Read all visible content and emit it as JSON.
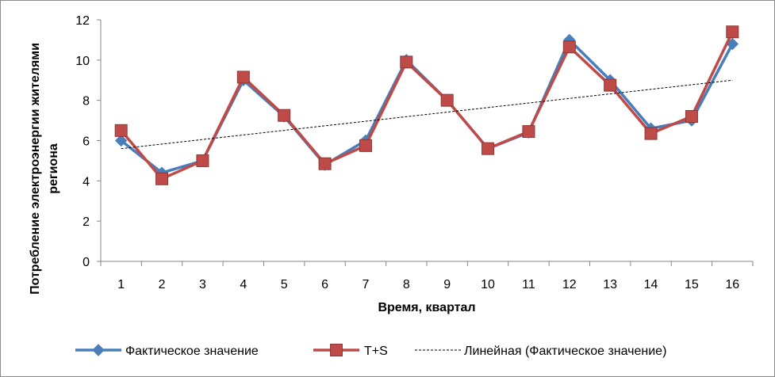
{
  "chart_data": {
    "type": "line",
    "xlabel": "Время, квартал",
    "ylabel_lines": [
      "Потребление электроэнергии жителями",
      "региона"
    ],
    "ylim": [
      0,
      12
    ],
    "yticks": [
      "0",
      "2",
      "4",
      "6",
      "8",
      "10",
      "12"
    ],
    "categories": [
      "1",
      "2",
      "3",
      "4",
      "5",
      "6",
      "7",
      "8",
      "9",
      "10",
      "11",
      "12",
      "13",
      "14",
      "15",
      "16"
    ],
    "grid": false,
    "legend_position": "bottom",
    "series": [
      {
        "name": "Фактическое значение",
        "color": "#4a7ebb",
        "marker": "diamond",
        "values": [
          6.0,
          4.4,
          5.0,
          9.0,
          7.2,
          4.8,
          6.0,
          10.0,
          8.0,
          5.6,
          6.4,
          11.0,
          9.0,
          6.6,
          7.0,
          10.8
        ]
      },
      {
        "name": "T+S",
        "color": "#be4b48",
        "marker": "square",
        "values": [
          6.5,
          4.1,
          5.0,
          9.15,
          7.25,
          4.85,
          5.75,
          9.9,
          8.0,
          5.6,
          6.45,
          10.65,
          8.75,
          6.35,
          7.2,
          11.4
        ]
      }
    ],
    "trendline": {
      "name": "Линейная (Фактическое значение)",
      "color": "#000000",
      "style": "dashed",
      "start_value": 5.6,
      "end_value": 9.0
    }
  }
}
